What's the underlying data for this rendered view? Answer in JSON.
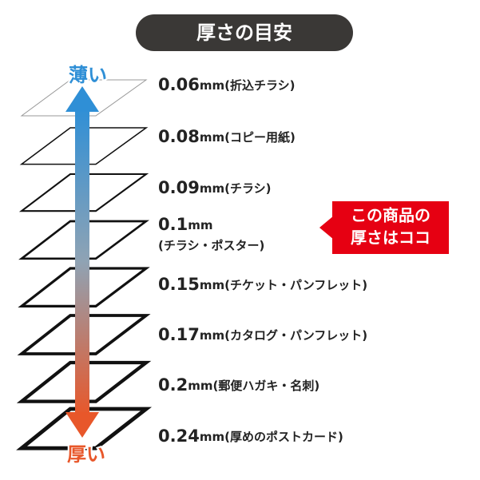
{
  "title": "厚さの目安",
  "arrow": {
    "top_label": "薄い",
    "bottom_label": "厚い"
  },
  "callout": {
    "line1": "この商品の",
    "line2": "厚さはココ"
  },
  "items": [
    {
      "value": "0.06",
      "unit": "mm",
      "desc": "(折込チラシ)"
    },
    {
      "value": "0.08",
      "unit": "mm",
      "desc": "(コピー用紙)"
    },
    {
      "value": "0.09",
      "unit": "mm",
      "desc": "(チラシ)"
    },
    {
      "value": "0.1",
      "unit": "mm",
      "desc": "(チラシ・ポスター)"
    },
    {
      "value": "0.15",
      "unit": "mm",
      "desc": "(チケット・パンフレット)"
    },
    {
      "value": "0.17",
      "unit": "mm",
      "desc": "(カタログ・パンフレット)"
    },
    {
      "value": "0.2",
      "unit": "mm",
      "desc": "(郵便ハガキ・名刺)"
    },
    {
      "value": "0.24",
      "unit": "mm",
      "desc": "(厚めのポストカード)"
    }
  ]
}
